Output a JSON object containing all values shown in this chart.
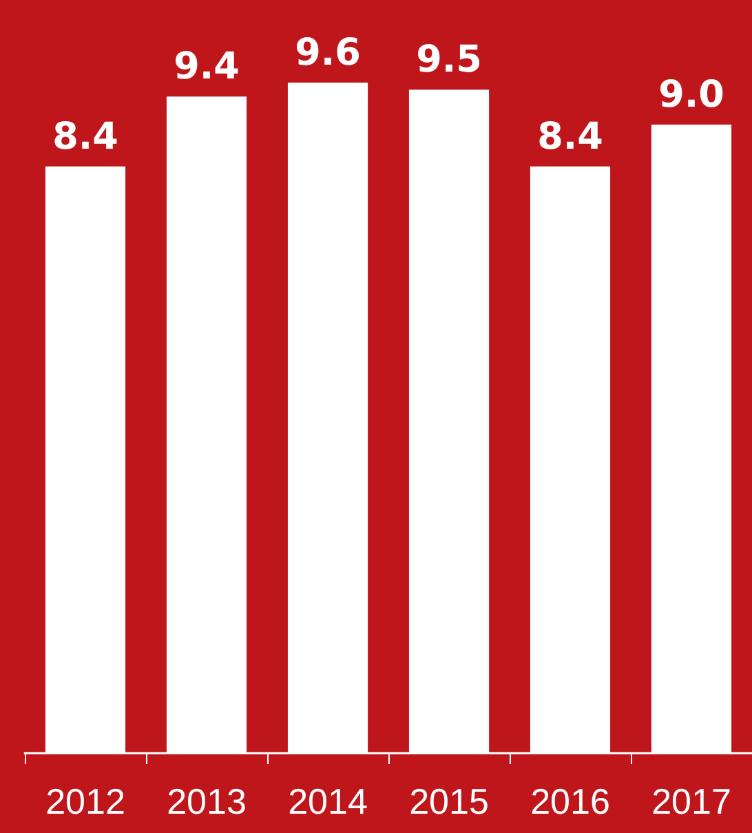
{
  "chart_data": {
    "type": "bar",
    "categories": [
      "2012",
      "2013",
      "2014",
      "2015",
      "2016",
      "2017"
    ],
    "values": [
      8.4,
      9.4,
      9.6,
      9.5,
      8.4,
      9.0
    ],
    "value_labels": [
      "8.4",
      "9.4",
      "9.6",
      "9.5",
      "8.4",
      "9.0"
    ],
    "color": "#ffffff",
    "tick_labels": "x"
  }
}
